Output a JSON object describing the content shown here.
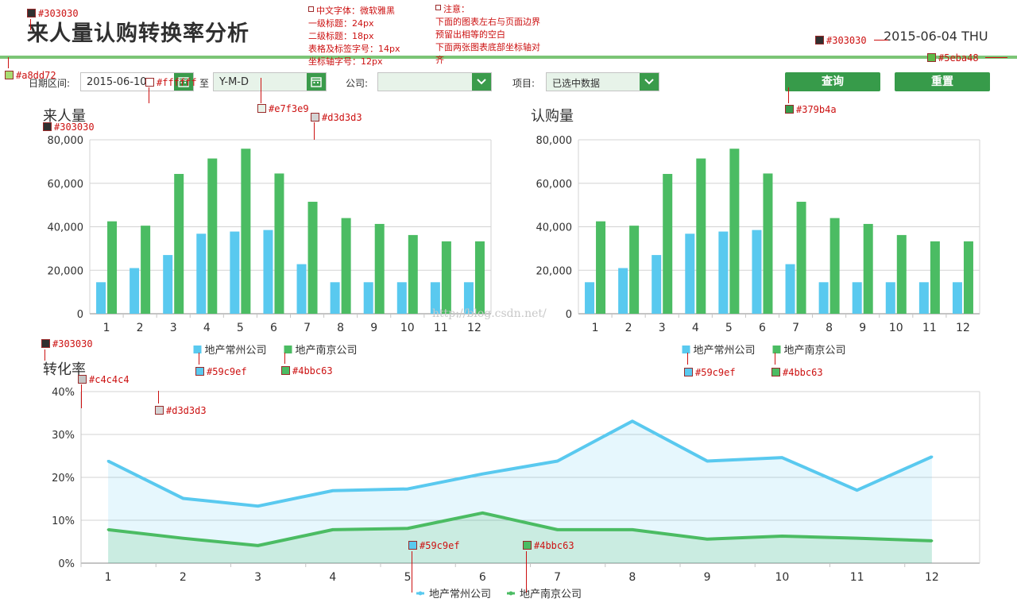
{
  "page": {
    "title": "来人量认购转换率分析",
    "date": "2015-06-04 THU"
  },
  "filters": {
    "date_label": "日期区间:",
    "date_from": "2015-06-10",
    "to_label": "至",
    "date_to": "Y-M-D",
    "company_label": "公司:",
    "company_value": "",
    "project_label": "项目:",
    "project_value": "已选中数据",
    "query_label": "查询",
    "reset_label": "重置"
  },
  "colors": {
    "title": "#303030",
    "rule": "#a8dd72",
    "rule_dark": "#5eba48",
    "field_bg": "#e7f3e9",
    "button": "#379b4a",
    "grid": "#d3d3d3",
    "axis": "#c4c4c4",
    "changzhou": "#59c9ef",
    "nanjing": "#4bbc63"
  },
  "annotations": {
    "title_color": "#303030",
    "rule_color": "#a8dd72",
    "field_white": "#ffffff",
    "field_bg": "#e7f3e9",
    "grid_color": "#d3d3d3",
    "date_color": "#303030",
    "rule_dark": "#5eba48",
    "button_color": "#379b4a",
    "subtitle_color": "#303030",
    "subtitle_color_2": "#303030",
    "axis_color": "#c4c4c4",
    "grid_color_2": "#d3d3d3",
    "legend_cz_1": "#59c9ef",
    "legend_nj_1": "#4bbc63",
    "legend_cz_2": "#59c9ef",
    "legend_nj_2": "#4bbc63",
    "line_cz": "#59c9ef",
    "line_nj": "#4bbc63",
    "note_fonts": "中文字体：微软雅黑\n一级标题：24px\n二级标题：18px\n表格及标签字号：14px\n坐标轴字号：12px",
    "note_layout": "注意：\n下面的图表左右与页面边界\n预留出相等的空白\n下面两张图表底部坐标轴对\n齐"
  },
  "watermark": "http://blog.csdn.net/",
  "chart_data": [
    {
      "type": "bar",
      "title": "来人量",
      "categories": [
        "1",
        "2",
        "3",
        "4",
        "5",
        "6",
        "7",
        "8",
        "9",
        "10",
        "11",
        "12"
      ],
      "ylim": [
        0,
        80000
      ],
      "yticks": [
        "0",
        "20,000",
        "40,000",
        "60,000",
        "80,000"
      ],
      "legend": "bottom",
      "series": [
        {
          "name": "地产常州公司",
          "values": [
            14500,
            21000,
            27000,
            36800,
            37800,
            38500,
            22800,
            14500,
            14500,
            14500,
            14500,
            14500
          ]
        },
        {
          "name": "地产南京公司",
          "values": [
            42500,
            40500,
            64300,
            71400,
            75900,
            64500,
            51500,
            44000,
            41300,
            36200,
            33300,
            33300
          ]
        }
      ]
    },
    {
      "type": "bar",
      "title": "认购量",
      "categories": [
        "1",
        "2",
        "3",
        "4",
        "5",
        "6",
        "7",
        "8",
        "9",
        "10",
        "11",
        "12"
      ],
      "ylim": [
        0,
        80000
      ],
      "yticks": [
        "0",
        "20,000",
        "40,000",
        "60,000",
        "80,000"
      ],
      "legend": "bottom",
      "series": [
        {
          "name": "地产常州公司",
          "values": [
            14500,
            21000,
            27000,
            36800,
            37800,
            38500,
            22800,
            14500,
            14500,
            14500,
            14500,
            14500
          ]
        },
        {
          "name": "地产南京公司",
          "values": [
            42500,
            40500,
            64300,
            71400,
            75900,
            64500,
            51500,
            44000,
            41300,
            36200,
            33300,
            33300
          ]
        }
      ]
    },
    {
      "type": "area",
      "title": "转化率",
      "categories": [
        "1",
        "2",
        "3",
        "4",
        "5",
        "6",
        "7",
        "8",
        "9",
        "10",
        "11",
        "12"
      ],
      "ylim": [
        0,
        40
      ],
      "yticks": [
        "0%",
        "10%",
        "20%",
        "30%",
        "40%"
      ],
      "legend": "bottom",
      "series": [
        {
          "name": "地产常州公司",
          "values": [
            23.8,
            15.1,
            13.3,
            16.9,
            17.3,
            20.8,
            23.8,
            33.1,
            23.8,
            24.6,
            17.0,
            24.8
          ]
        },
        {
          "name": "地产南京公司",
          "values": [
            7.8,
            5.8,
            4.1,
            7.8,
            8.1,
            11.7,
            7.8,
            7.8,
            5.6,
            6.3,
            5.8,
            5.2
          ]
        }
      ]
    }
  ]
}
